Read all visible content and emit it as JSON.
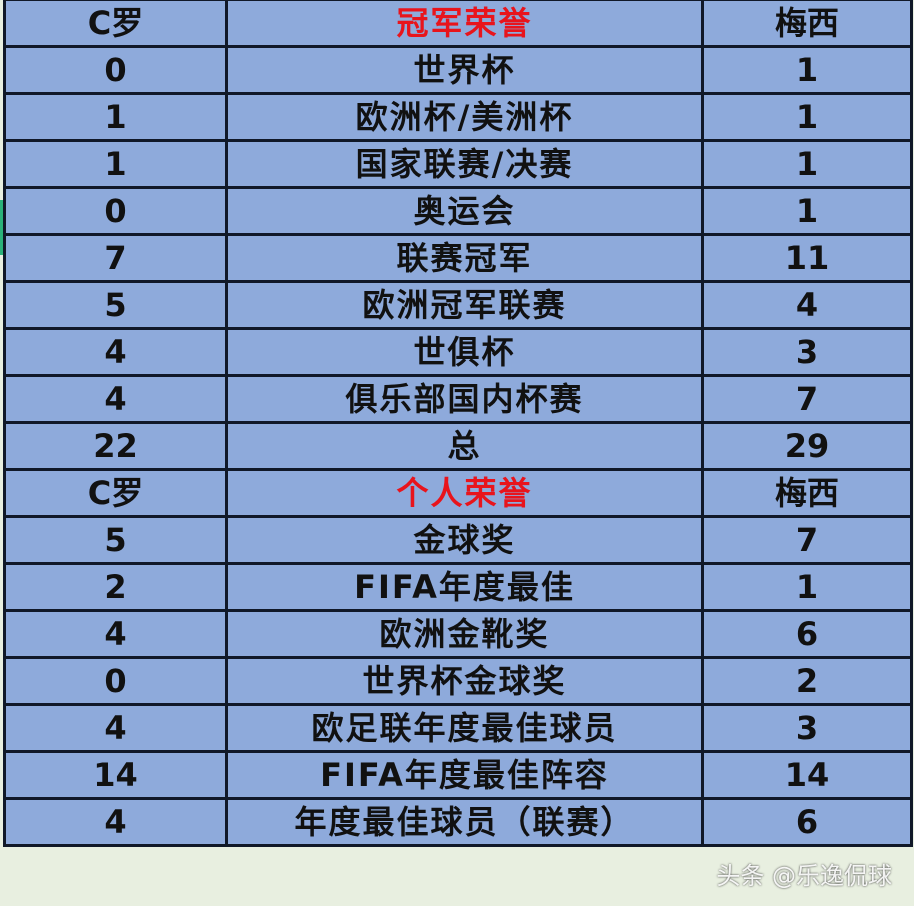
{
  "watermark": "头条 @乐逸侃球",
  "colors": {
    "cell": "#8eaadb",
    "header_text": "#e8141c",
    "border": "#101828"
  },
  "rows": [
    {
      "left": "C罗",
      "middle": "冠军荣誉",
      "right": "梅西",
      "header": true
    },
    {
      "left": "0",
      "middle": "世界杯",
      "right": "1"
    },
    {
      "left": "1",
      "middle": "欧洲杯/美洲杯",
      "right": "1"
    },
    {
      "left": "1",
      "middle": "国家联赛/决赛",
      "right": "1"
    },
    {
      "left": "0",
      "middle": "奥运会",
      "right": "1"
    },
    {
      "left": "7",
      "middle": "联赛冠军",
      "right": "11"
    },
    {
      "left": "5",
      "middle": "欧洲冠军联赛",
      "right": "4"
    },
    {
      "left": "4",
      "middle": "世俱杯",
      "right": "3"
    },
    {
      "left": "4",
      "middle": "俱乐部国内杯赛",
      "right": "7"
    },
    {
      "left": "22",
      "middle": "总",
      "right": "29"
    },
    {
      "left": "C罗",
      "middle": "个人荣誉",
      "right": "梅西",
      "header": true
    },
    {
      "left": "5",
      "middle": "金球奖",
      "right": "7"
    },
    {
      "left": "2",
      "middle": "FIFA年度最佳",
      "right": "1"
    },
    {
      "left": "4",
      "middle": "欧洲金靴奖",
      "right": "6"
    },
    {
      "left": "0",
      "middle": "世界杯金球奖",
      "right": "2"
    },
    {
      "left": "4",
      "middle": "欧足联年度最佳球员",
      "right": "3"
    },
    {
      "left": "14",
      "middle": "FIFA年度最佳阵容",
      "right": "14"
    },
    {
      "left": "4",
      "middle": "年度最佳球员（联赛）",
      "right": "6"
    }
  ]
}
